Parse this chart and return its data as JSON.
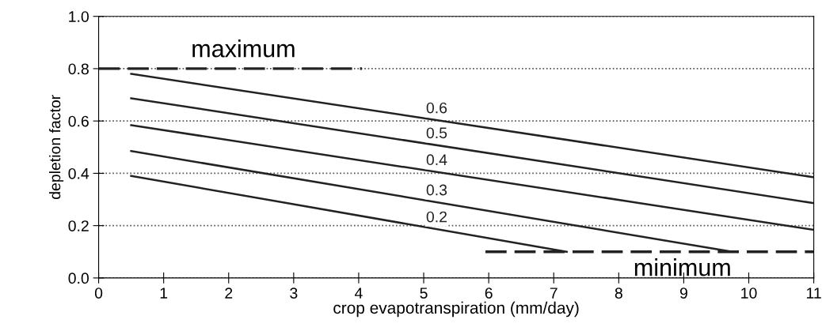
{
  "chart_data": {
    "type": "line",
    "xlabel": "crop evapotranspiration (mm/day)",
    "ylabel": "depletion factor",
    "xlim": [
      0,
      11
    ],
    "ylim": [
      0,
      1.0
    ],
    "xticks": [
      0,
      1,
      2,
      3,
      4,
      5,
      6,
      7,
      8,
      9,
      10,
      11
    ],
    "yticks": [
      {
        "value": 0,
        "label": "0.0"
      },
      0.2,
      0.4,
      0.6,
      0.8,
      {
        "value": 1,
        "label": "1.0"
      }
    ],
    "grid": "y",
    "marker": "none",
    "series": [
      {
        "name": "0.6",
        "color": "#222222",
        "x": [
          0.5,
          11
        ],
        "values": [
          0.78,
          0.385
        ]
      },
      {
        "name": "0.5",
        "color": "#222222",
        "x": [
          0.5,
          11
        ],
        "values": [
          0.687,
          0.286
        ]
      },
      {
        "name": "0.4",
        "color": "#222222",
        "x": [
          0.5,
          11
        ],
        "values": [
          0.584,
          0.184
        ]
      },
      {
        "name": "0.3",
        "color": "#222222",
        "x": [
          0.5,
          9.75
        ],
        "values": [
          0.485,
          0.1
        ]
      },
      {
        "name": "0.2",
        "color": "#222222",
        "x": [
          0.5,
          7.2
        ],
        "values": [
          0.39,
          0.1
        ]
      },
      {
        "color": "#222222",
        "x": [
          0,
          4.05
        ],
        "values": [
          0.8,
          0.8
        ],
        "line_style": "dashed"
      },
      {
        "color": "#222222",
        "x": [
          5.95,
          11
        ],
        "values": [
          0.1,
          0.1
        ],
        "line_style": "dashed"
      }
    ],
    "annotations": [
      "maximum",
      "minimum"
    ]
  }
}
